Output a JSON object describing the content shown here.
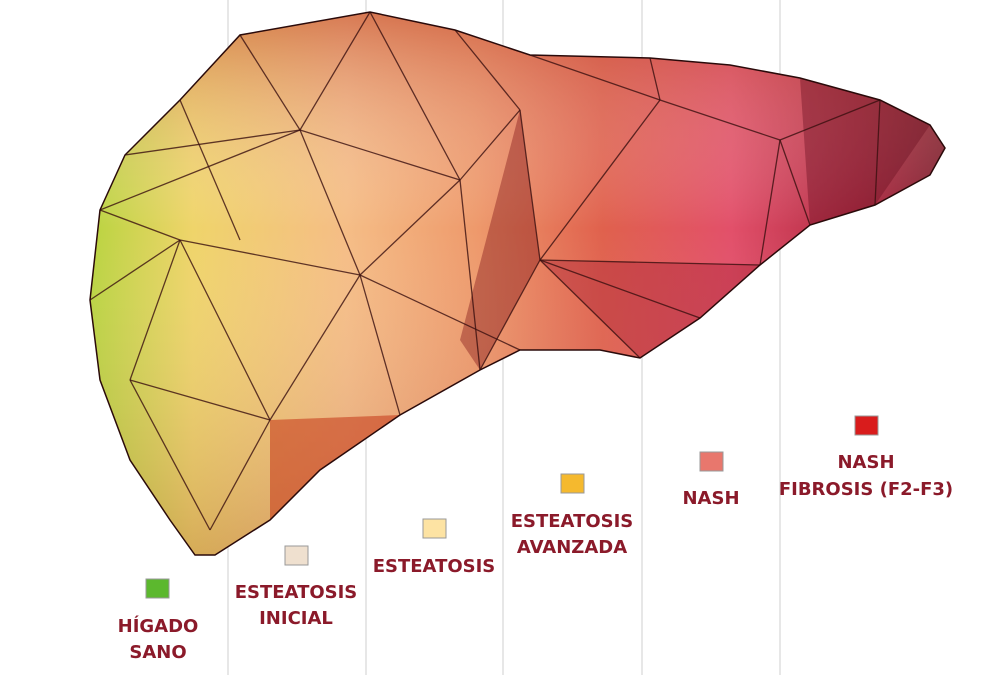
{
  "stages": [
    {
      "lines": [
        "HÍGADO",
        "SANO"
      ]
    },
    {
      "lines": [
        "ESTEATOSIS",
        "INICIAL"
      ]
    },
    {
      "lines": [
        "ESTEATOSIS"
      ]
    },
    {
      "lines": [
        "ESTEATOSIS",
        "AVANZADA"
      ]
    },
    {
      "lines": [
        "NASH"
      ]
    },
    {
      "lines": [
        "NASH",
        "FIBROSIS (F2-F3)"
      ]
    }
  ]
}
